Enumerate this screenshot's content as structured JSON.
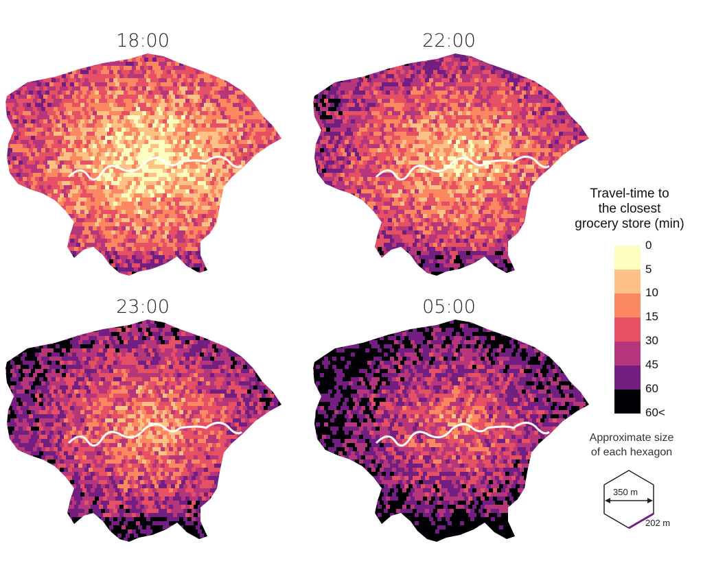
{
  "panels": [
    {
      "title": "18:00",
      "level": 0
    },
    {
      "title": "22:00",
      "level": 1
    },
    {
      "title": "23:00",
      "level": 2
    },
    {
      "title": "05:00",
      "level": 3
    }
  ],
  "legend": {
    "title_lines": [
      "Travel-time to",
      "the closest",
      "grocery store (min)"
    ],
    "labels": [
      "0",
      "5",
      "10",
      "15",
      "30",
      "45",
      "60",
      "60<"
    ],
    "colors": [
      "#fcfdbf",
      "#fec287",
      "#fb8861",
      "#e55064",
      "#b5367a",
      "#721f81",
      "#000004"
    ]
  },
  "hexagon_note": {
    "lines": [
      "Approximate size",
      "of each hexagon"
    ],
    "width_label": "350 m",
    "side_label": "202 m",
    "side_color": "#721f81"
  }
}
